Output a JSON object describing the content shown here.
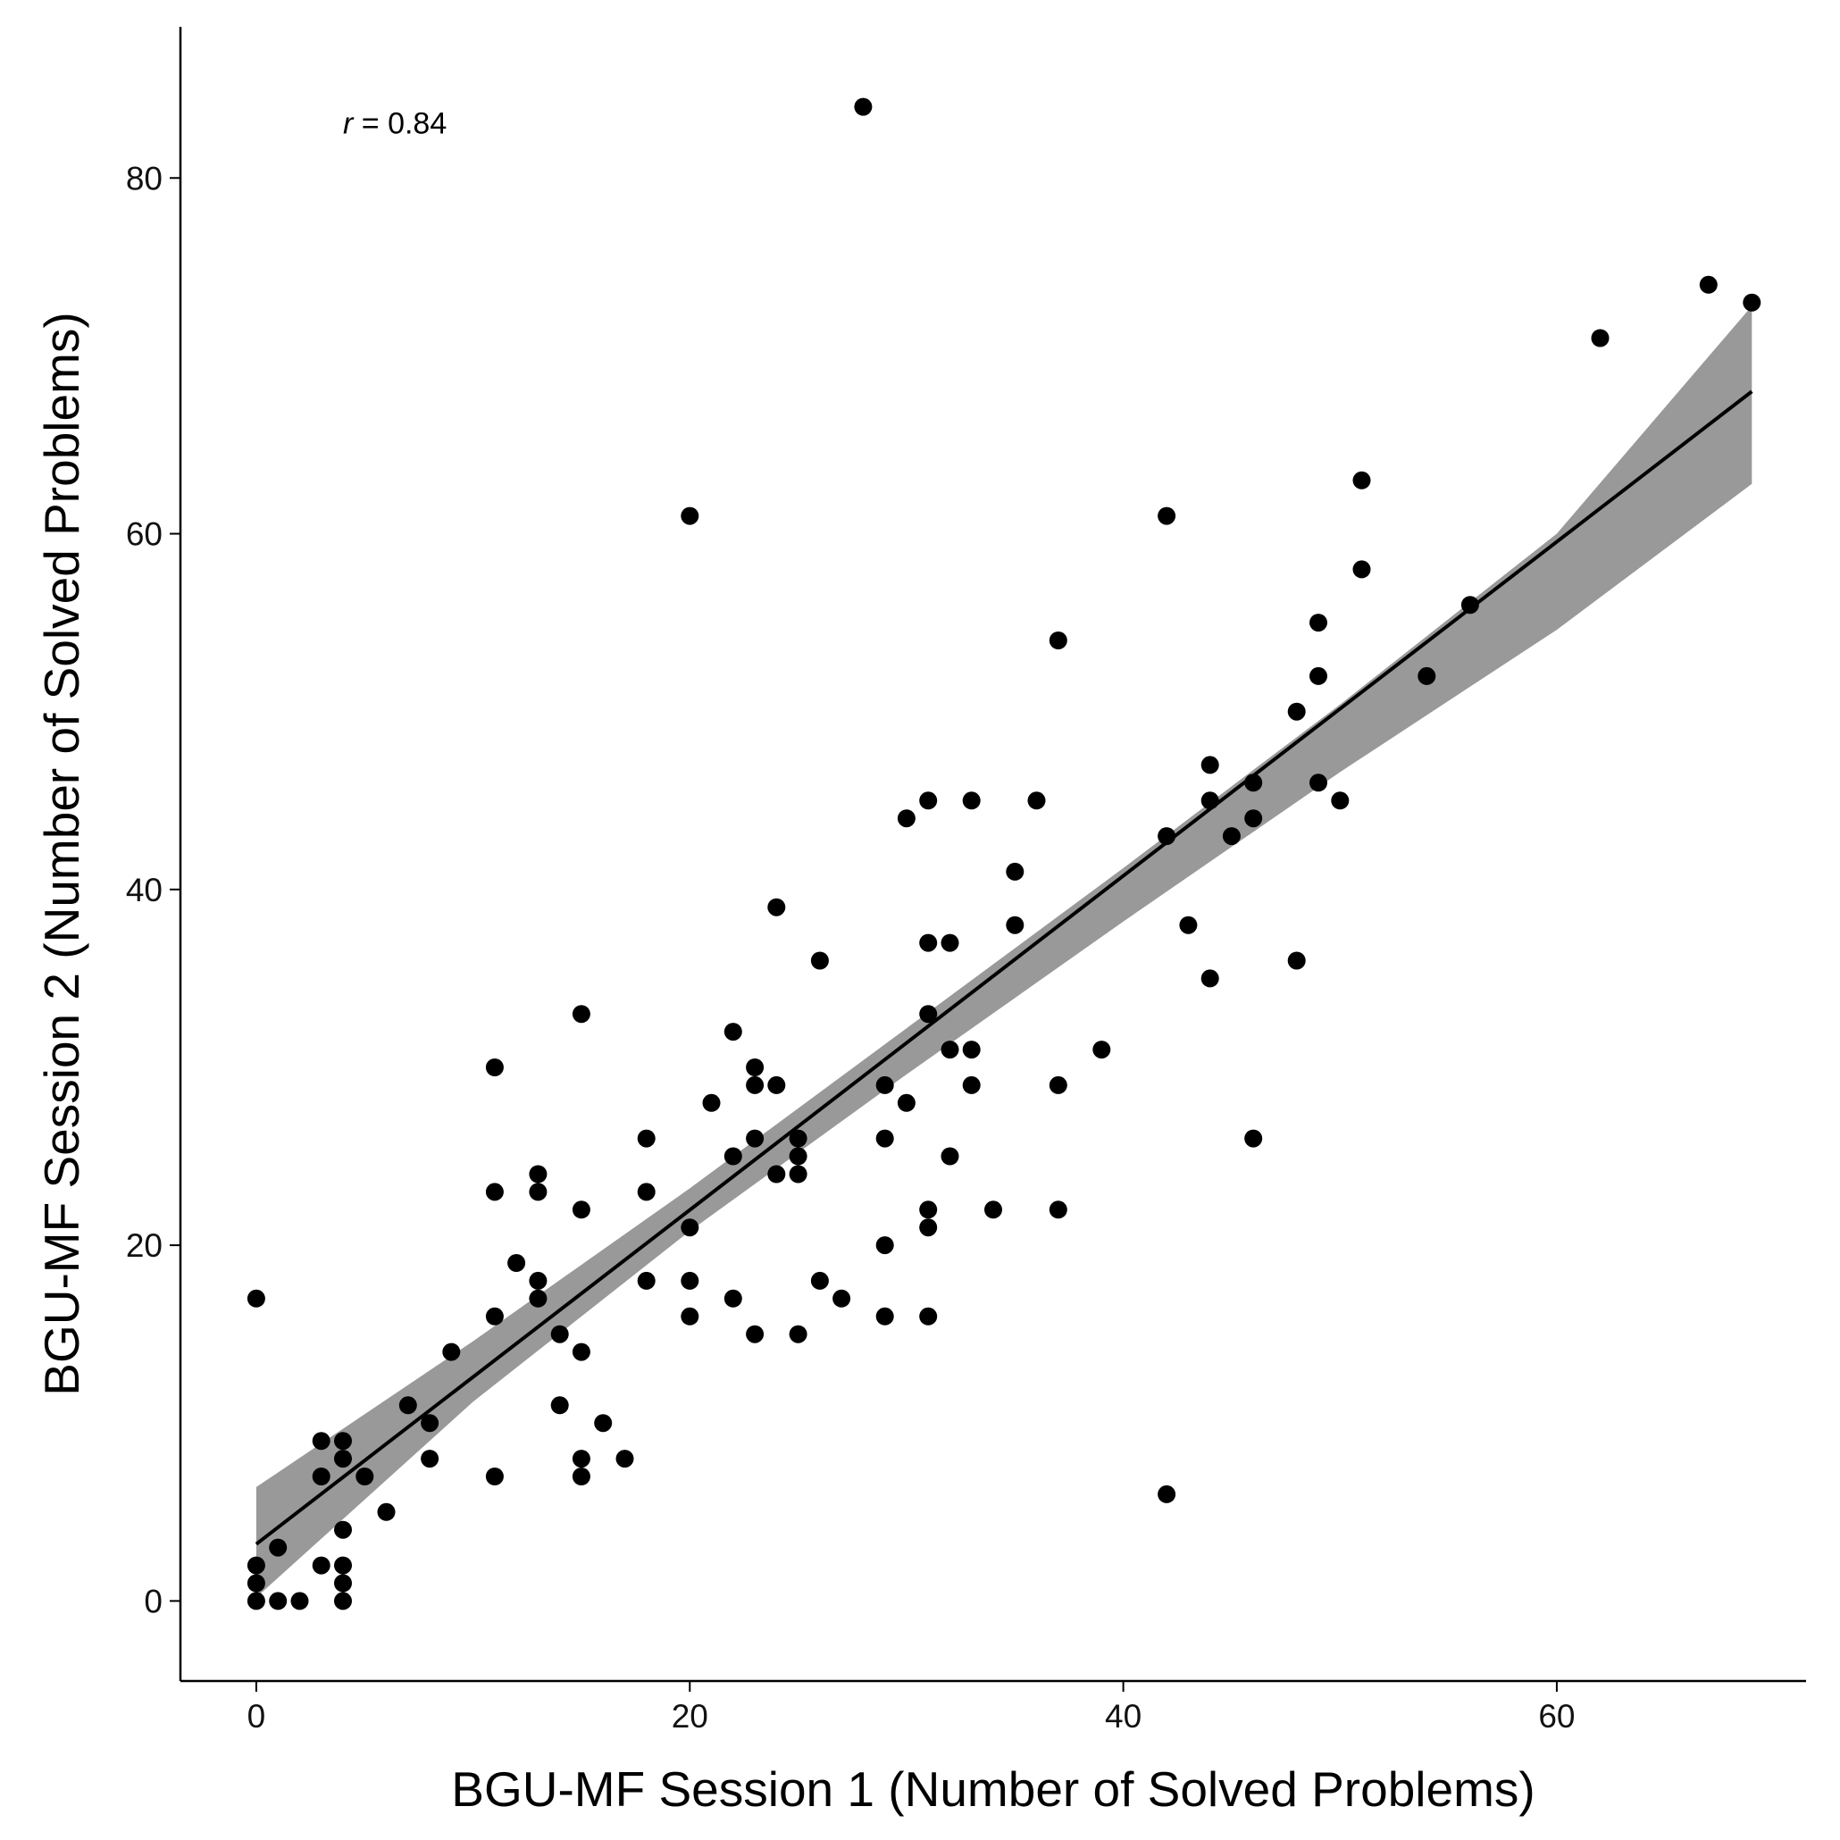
{
  "chart_data": {
    "type": "scatter",
    "title": "",
    "xlabel": "BGU-MF Session 1 (Number of Solved Problems)",
    "ylabel": "BGU-MF Session 2 (Number of Solved Problems)",
    "xlim": [
      -3.5,
      71.5
    ],
    "ylim": [
      -4.5,
      88.5
    ],
    "x_ticks": [
      0,
      20,
      40,
      60
    ],
    "y_ticks": [
      0,
      20,
      40,
      60,
      80
    ],
    "annotation": {
      "italic": "r",
      "text": " = 0.84",
      "x": 4,
      "y": 82.5
    },
    "regression": {
      "line": [
        [
          0,
          3.2
        ],
        [
          69,
          68
        ]
      ],
      "ci_band": [
        {
          "x": 0,
          "lower": 0.2,
          "upper": 6.4
        },
        {
          "x": 10,
          "lower": 11.2,
          "upper": 14.6
        },
        {
          "x": 20,
          "lower": 20.8,
          "upper": 23.2
        },
        {
          "x": 30,
          "lower": 29.6,
          "upper": 32.2
        },
        {
          "x": 40,
          "lower": 38.2,
          "upper": 41.2
        },
        {
          "x": 50,
          "lower": 46.6,
          "upper": 50.4
        },
        {
          "x": 60,
          "lower": 54.6,
          "upper": 60.0
        },
        {
          "x": 69,
          "lower": 62.8,
          "upper": 72.8
        }
      ]
    },
    "points": [
      [
        0,
        0
      ],
      [
        0,
        1
      ],
      [
        0,
        2
      ],
      [
        0,
        17
      ],
      [
        1,
        0
      ],
      [
        1,
        3
      ],
      [
        2,
        0
      ],
      [
        3,
        2
      ],
      [
        3,
        7
      ],
      [
        3,
        9
      ],
      [
        4,
        0
      ],
      [
        4,
        1
      ],
      [
        4,
        2
      ],
      [
        4,
        4
      ],
      [
        4,
        8
      ],
      [
        4,
        9
      ],
      [
        5,
        7
      ],
      [
        6,
        5
      ],
      [
        7,
        11
      ],
      [
        8,
        8
      ],
      [
        8,
        10
      ],
      [
        9,
        14
      ],
      [
        11,
        7
      ],
      [
        11,
        16
      ],
      [
        11,
        23
      ],
      [
        11,
        30
      ],
      [
        12,
        19
      ],
      [
        13,
        17
      ],
      [
        13,
        18
      ],
      [
        13,
        23
      ],
      [
        13,
        24
      ],
      [
        14,
        11
      ],
      [
        14,
        15
      ],
      [
        15,
        7
      ],
      [
        15,
        8
      ],
      [
        15,
        14
      ],
      [
        15,
        22
      ],
      [
        15,
        33
      ],
      [
        16,
        10
      ],
      [
        17,
        8
      ],
      [
        18,
        18
      ],
      [
        18,
        23
      ],
      [
        18,
        26
      ],
      [
        20,
        16
      ],
      [
        20,
        18
      ],
      [
        20,
        21
      ],
      [
        20,
        61
      ],
      [
        21,
        28
      ],
      [
        22,
        17
      ],
      [
        22,
        25
      ],
      [
        22,
        32
      ],
      [
        23,
        15
      ],
      [
        23,
        26
      ],
      [
        23,
        29
      ],
      [
        23,
        30
      ],
      [
        24,
        24
      ],
      [
        24,
        29
      ],
      [
        24,
        39
      ],
      [
        25,
        15
      ],
      [
        25,
        24
      ],
      [
        25,
        25
      ],
      [
        25,
        26
      ],
      [
        26,
        18
      ],
      [
        26,
        36
      ],
      [
        27,
        17
      ],
      [
        28,
        84
      ],
      [
        29,
        16
      ],
      [
        29,
        20
      ],
      [
        29,
        26
      ],
      [
        29,
        29
      ],
      [
        30,
        28
      ],
      [
        30,
        44
      ],
      [
        31,
        16
      ],
      [
        31,
        21
      ],
      [
        31,
        22
      ],
      [
        31,
        33
      ],
      [
        31,
        37
      ],
      [
        31,
        45
      ],
      [
        32,
        25
      ],
      [
        32,
        31
      ],
      [
        32,
        37
      ],
      [
        33,
        29
      ],
      [
        33,
        31
      ],
      [
        33,
        45
      ],
      [
        34,
        22
      ],
      [
        35,
        38
      ],
      [
        35,
        41
      ],
      [
        36,
        45
      ],
      [
        37,
        22
      ],
      [
        37,
        29
      ],
      [
        37,
        54
      ],
      [
        39,
        31
      ],
      [
        42,
        6
      ],
      [
        42,
        43
      ],
      [
        42,
        61
      ],
      [
        43,
        38
      ],
      [
        44,
        35
      ],
      [
        44,
        45
      ],
      [
        44,
        47
      ],
      [
        45,
        43
      ],
      [
        46,
        26
      ],
      [
        46,
        44
      ],
      [
        46,
        46
      ],
      [
        48,
        36
      ],
      [
        48,
        50
      ],
      [
        49,
        46
      ],
      [
        49,
        52
      ],
      [
        49,
        55
      ],
      [
        50,
        45
      ],
      [
        51,
        58
      ],
      [
        51,
        63
      ],
      [
        54,
        52
      ],
      [
        56,
        56
      ],
      [
        62,
        71
      ],
      [
        67,
        74
      ],
      [
        69,
        73
      ]
    ]
  }
}
